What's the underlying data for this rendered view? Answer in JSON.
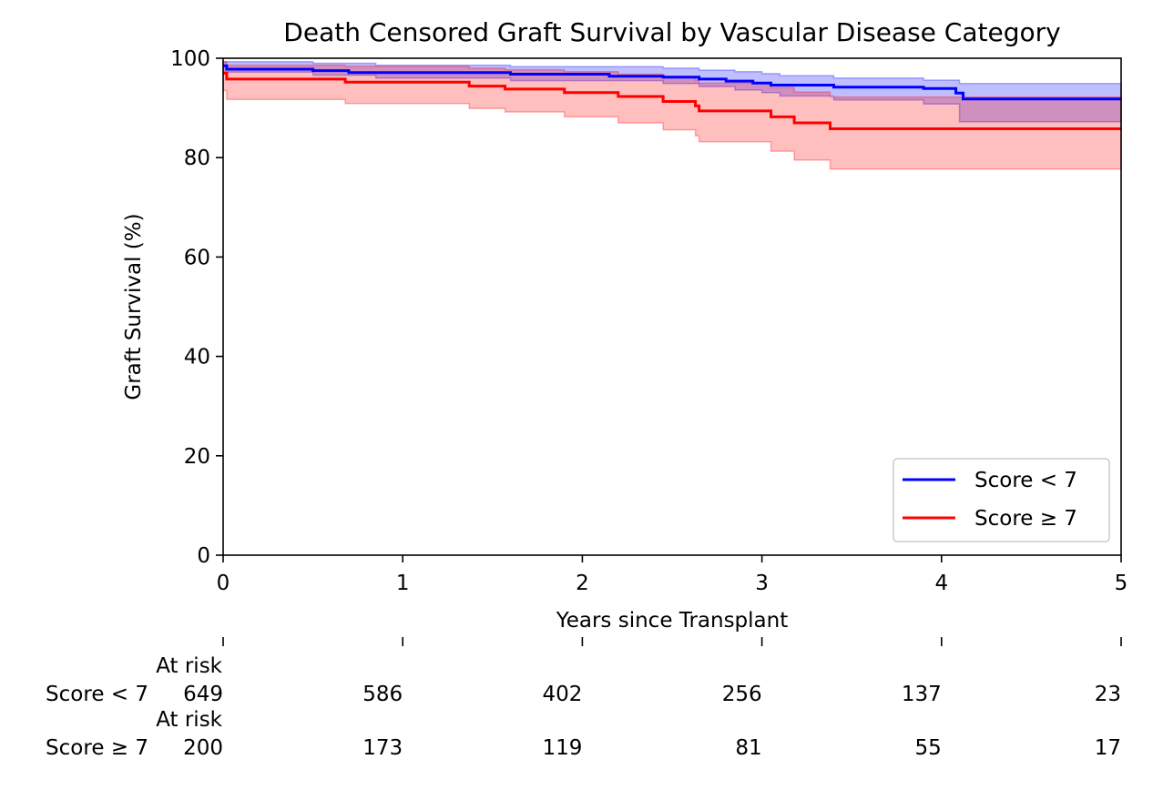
{
  "chart_data": {
    "type": "line",
    "title": "Death Censored Graft Survival by Vascular Disease Category",
    "xlabel": "Years since Transplant",
    "ylabel": "Graft Survival (%)",
    "xlim": [
      0,
      5
    ],
    "ylim": [
      0,
      100
    ],
    "xticks": [
      "0",
      "1",
      "2",
      "3",
      "4",
      "5"
    ],
    "yticks": [
      "0",
      "20",
      "40",
      "60",
      "80",
      "100"
    ],
    "grid": false,
    "legend_position": "lower-right",
    "series": [
      {
        "name": "Score < 7",
        "color": "#0000ff",
        "band_color": "#0000ff",
        "x": [
          0,
          0.02,
          0.5,
          0.7,
          1.6,
          2.15,
          2.45,
          2.65,
          2.8,
          2.95,
          3.05,
          3.4,
          3.9,
          4.08,
          4.12,
          5
        ],
        "y": [
          98.5,
          97.8,
          97.5,
          97.1,
          96.8,
          96.4,
          96.2,
          95.8,
          95.4,
          95.0,
          94.6,
          94.2,
          93.9,
          93.0,
          91.8,
          91.8
        ],
        "ci_x": [
          0,
          0.5,
          0.85,
          1.6,
          2.45,
          2.65,
          2.85,
          3.0,
          3.1,
          3.4,
          3.9,
          4.1,
          5
        ],
        "ci_lower": [
          97.2,
          96.6,
          96.0,
          95.5,
          94.9,
          94.3,
          93.6,
          93.1,
          92.4,
          91.6,
          90.8,
          87.2,
          87.2
        ],
        "ci_upper": [
          99.3,
          99.0,
          98.6,
          98.3,
          98.0,
          97.6,
          97.3,
          96.9,
          96.5,
          96.0,
          95.6,
          94.9,
          94.9
        ]
      },
      {
        "name": "Score ≥ 7",
        "color": "#ff0000",
        "band_color": "#ff0000",
        "x": [
          0,
          0.02,
          0.68,
          1.37,
          1.57,
          1.9,
          2.2,
          2.45,
          2.63,
          2.65,
          3.05,
          3.18,
          3.38,
          5
        ],
        "y": [
          97.0,
          95.8,
          95.2,
          94.4,
          93.8,
          93.1,
          92.3,
          91.3,
          90.4,
          89.4,
          88.2,
          87.0,
          85.8,
          85.8
        ],
        "ci_x": [
          0,
          0.02,
          0.68,
          1.37,
          1.57,
          1.9,
          2.2,
          2.45,
          2.63,
          2.65,
          3.05,
          3.18,
          3.38,
          5
        ],
        "ci_lower": [
          93.5,
          91.7,
          90.9,
          89.9,
          89.2,
          88.2,
          87.0,
          85.6,
          84.4,
          83.2,
          81.3,
          79.5,
          77.7,
          77.7
        ],
        "ci_upper": [
          99.3,
          98.6,
          98.4,
          98.0,
          97.7,
          97.3,
          96.8,
          96.1,
          95.6,
          95.0,
          94.1,
          93.2,
          92.2,
          92.2
        ]
      }
    ],
    "at_risk_table": {
      "row_header": "At risk",
      "rows": [
        {
          "label": "Score < 7",
          "values": [
            "649",
            "586",
            "402",
            "256",
            "137",
            "23"
          ]
        },
        {
          "label": "Score ≥ 7",
          "values": [
            "200",
            "173",
            "119",
            "81",
            "55",
            "17"
          ]
        }
      ]
    }
  }
}
